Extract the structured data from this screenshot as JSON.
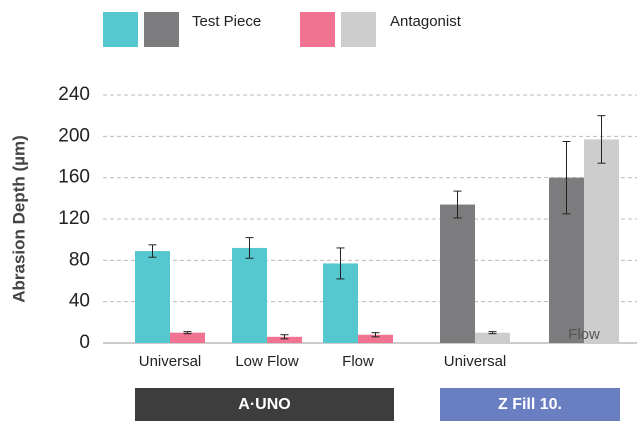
{
  "chart_data": {
    "type": "bar",
    "y_label": "Abrasion Depth (µm)",
    "categories": [
      "Universal",
      "Low Flow",
      "Flow",
      "Universal",
      "Flow"
    ],
    "groups": [
      {
        "label": "A·UNO",
        "start": 0,
        "end": 2,
        "color": "#3d3d3d"
      },
      {
        "label": "Z Fill 10.",
        "start": 3,
        "end": 4,
        "color": "#6a7ec2"
      }
    ],
    "series": [
      {
        "name": "Test Piece",
        "colors": [
          "#55c7cf",
          "#55c7cf",
          "#55c7cf",
          "#7c7c7e",
          "#7c7c7e"
        ],
        "values": [
          89,
          92,
          77,
          134,
          160
        ],
        "errors": [
          6,
          10,
          15,
          13,
          35
        ]
      },
      {
        "name": "Antagonist",
        "colors": [
          "#f07492",
          "#f07492",
          "#f07492",
          "#cdcdcd",
          "#cdcdcd"
        ],
        "values": [
          10,
          6,
          8,
          10,
          197
        ],
        "errors": [
          1,
          2,
          2,
          1,
          23
        ]
      }
    ],
    "ylim": [
      0,
      240
    ],
    "yticks": [
      0,
      40,
      80,
      120,
      160,
      200,
      240
    ],
    "grid": true
  }
}
